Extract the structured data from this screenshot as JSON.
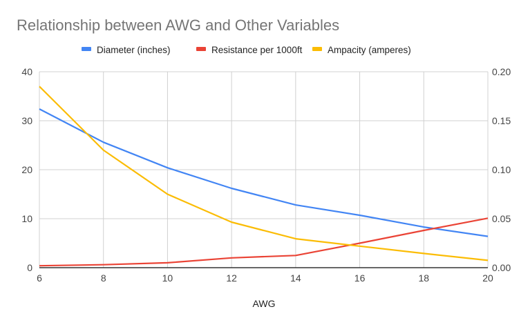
{
  "chart_data": {
    "type": "line",
    "title": "Relationship between AWG and Other Variables",
    "xlabel": "AWG",
    "ylabel": "",
    "legend_position": "top",
    "grid": true,
    "x": [
      6,
      8,
      10,
      12,
      14,
      16,
      18,
      20
    ],
    "xlim": [
      6,
      20
    ],
    "x_ticks": [
      "6",
      "8",
      "10",
      "12",
      "14",
      "16",
      "18",
      "20"
    ],
    "ylim_left": [
      0,
      40
    ],
    "y_ticks_left": [
      "0",
      "10",
      "20",
      "30",
      "40"
    ],
    "ylim_right": [
      0,
      0.2
    ],
    "y_ticks_right": [
      "0.00",
      "0.05",
      "0.10",
      "0.15",
      "0.20"
    ],
    "series": [
      {
        "name": "Diameter (inches)",
        "axis": "right",
        "color": "#4285f4",
        "values": [
          0.162,
          0.128,
          0.102,
          0.081,
          0.064,
          0.0535,
          0.0415,
          0.032
        ]
      },
      {
        "name": "Resistance per 1000ft",
        "axis": "left",
        "color": "#ea4335",
        "values": [
          0.4,
          0.6,
          1.0,
          2.0,
          2.5,
          5.0,
          7.6,
          10.1
        ]
      },
      {
        "name": "Ampacity (amperes)",
        "axis": "left",
        "color": "#fbbc04",
        "values": [
          37,
          24,
          15,
          9.3,
          5.9,
          4.4,
          2.9,
          1.5
        ]
      }
    ]
  }
}
